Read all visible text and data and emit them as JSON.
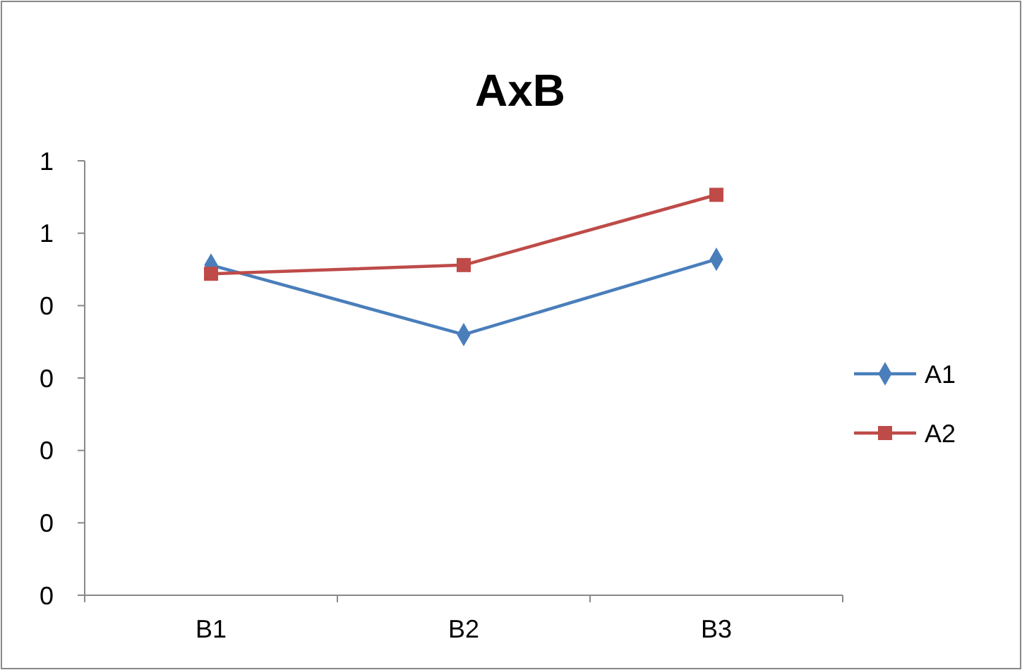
{
  "chart_data": {
    "type": "line",
    "title": "AxB",
    "categories": [
      "B1",
      "B2",
      "B3"
    ],
    "series": [
      {
        "name": "A1",
        "color": "#4a7ebb",
        "values": [
          0.456,
          0.36,
          0.464
        ],
        "marker": "diamond"
      },
      {
        "name": "A2",
        "color": "#be4b48",
        "values": [
          0.444,
          0.456,
          0.553
        ],
        "marker": "square"
      }
    ],
    "ylim": [
      0,
      0.6
    ],
    "yticks": [
      {
        "value": 0,
        "label": "0"
      },
      {
        "value": 0.1,
        "label": "0"
      },
      {
        "value": 0.2,
        "label": "0"
      },
      {
        "value": 0.3,
        "label": "0"
      },
      {
        "value": 0.4,
        "label": "0"
      },
      {
        "value": 0.5,
        "label": "1"
      },
      {
        "value": 0.6,
        "label": "1"
      }
    ],
    "grid": false,
    "legend": "right"
  }
}
